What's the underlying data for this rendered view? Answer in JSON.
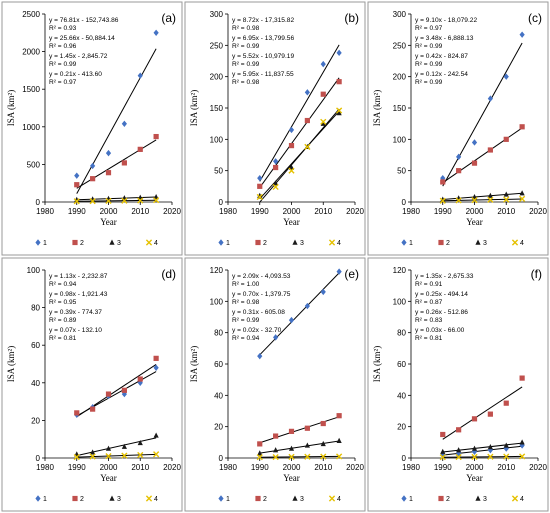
{
  "colors": {
    "series1": "#4472C4",
    "series2": "#C0504D",
    "series3": "#1a1a1a",
    "series4": "#E5C100"
  },
  "chart_data": [
    {
      "type": "scatter",
      "label": "(a)",
      "xlabel": "Year",
      "ylabel": "ISA (km²)",
      "xlim": [
        1980,
        2020
      ],
      "xticks": [
        1980,
        1990,
        2000,
        2010,
        2020
      ],
      "ylim": [
        0,
        2500
      ],
      "yticks": [
        0,
        500,
        1000,
        1500,
        2000,
        2500
      ],
      "x": [
        1990,
        1995,
        2000,
        2005,
        2010,
        2015
      ],
      "series": [
        {
          "name": "1",
          "marker": "diamond",
          "values": [
            350,
            480,
            650,
            1040,
            1680,
            2250
          ]
        },
        {
          "name": "2",
          "marker": "square",
          "values": [
            230,
            310,
            390,
            520,
            700,
            870
          ]
        },
        {
          "name": "3",
          "marker": "triangle",
          "values": [
            30,
            36,
            44,
            52,
            58,
            66
          ]
        },
        {
          "name": "4",
          "marker": "cross",
          "values": [
            10,
            12,
            14,
            17,
            20,
            24
          ]
        }
      ],
      "equations": [
        {
          "eq": "y = 76.81x - 152,743.86",
          "r2": "R² = 0.93"
        },
        {
          "eq": "y = 25.66x - 50,884.14",
          "r2": "R² = 0.96"
        },
        {
          "eq": "y = 1.45x - 2,845.72",
          "r2": "R² = 0.99"
        },
        {
          "eq": "y = 0.21x - 413.60",
          "r2": "R² = 0.97"
        }
      ]
    },
    {
      "type": "scatter",
      "label": "(b)",
      "xlabel": "Year",
      "ylabel": "ISA (km²)",
      "xlim": [
        1980,
        2020
      ],
      "xticks": [
        1980,
        1990,
        2000,
        2010,
        2020
      ],
      "ylim": [
        0,
        300
      ],
      "yticks": [
        0,
        50,
        100,
        150,
        200,
        250,
        300
      ],
      "x": [
        1990,
        1995,
        2000,
        2005,
        2010,
        2015
      ],
      "series": [
        {
          "name": "1",
          "marker": "diamond",
          "values": [
            38,
            65,
            115,
            175,
            220,
            238
          ]
        },
        {
          "name": "2",
          "marker": "square",
          "values": [
            25,
            55,
            90,
            130,
            172,
            192
          ]
        },
        {
          "name": "3",
          "marker": "triangle",
          "values": [
            10,
            30,
            55,
            88,
            125,
            142
          ]
        },
        {
          "name": "4",
          "marker": "cross",
          "values": [
            8,
            24,
            50,
            88,
            128,
            146
          ]
        }
      ],
      "equations": [
        {
          "eq": "y = 8.72x - 17,315.82",
          "r2": "R² = 0.98"
        },
        {
          "eq": "y = 6.95x - 13,799.56",
          "r2": "R² = 0.99"
        },
        {
          "eq": "y = 5.52x - 10,979.19",
          "r2": "R² = 0.99"
        },
        {
          "eq": "y = 5.95x - 11,837.55",
          "r2": "R² = 0.98"
        }
      ]
    },
    {
      "type": "scatter",
      "label": "(c)",
      "xlabel": "Year",
      "ylabel": "ISA (km²)",
      "xlim": [
        1980,
        2020
      ],
      "xticks": [
        1980,
        1990,
        2000,
        2010,
        2020
      ],
      "ylim": [
        0,
        300
      ],
      "yticks": [
        0,
        50,
        100,
        150,
        200,
        250,
        300
      ],
      "x": [
        1990,
        1995,
        2000,
        2005,
        2010,
        2015
      ],
      "series": [
        {
          "name": "1",
          "marker": "diamond",
          "values": [
            38,
            72,
            95,
            165,
            200,
            267
          ]
        },
        {
          "name": "2",
          "marker": "square",
          "values": [
            32,
            50,
            62,
            83,
            100,
            120
          ]
        },
        {
          "name": "3",
          "marker": "triangle",
          "values": [
            4,
            6,
            8,
            10,
            12,
            14
          ]
        },
        {
          "name": "4",
          "marker": "cross",
          "values": [
            2,
            2.5,
            3,
            3.5,
            4,
            5
          ]
        }
      ],
      "equations": [
        {
          "eq": "y = 9.10x - 18,079.22",
          "r2": "R² = 0.97"
        },
        {
          "eq": "y = 3.48x - 6,888.13",
          "r2": "R² = 0.99"
        },
        {
          "eq": "y = 0.42x - 824.87",
          "r2": "R² = 0.99"
        },
        {
          "eq": "y = 0.12x - 242.54",
          "r2": "R² = 0.99"
        }
      ]
    },
    {
      "type": "scatter",
      "label": "(d)",
      "xlabel": "Year",
      "ylabel": "ISA (km²)",
      "xlim": [
        1980,
        2020
      ],
      "xticks": [
        1980,
        1990,
        2000,
        2010,
        2020
      ],
      "ylim": [
        0,
        100
      ],
      "yticks": [
        0,
        20,
        40,
        60,
        80,
        100
      ],
      "x": [
        1990,
        1995,
        2000,
        2005,
        2010,
        2015
      ],
      "series": [
        {
          "name": "1",
          "marker": "diamond",
          "values": [
            23,
            27,
            33,
            34,
            40,
            48
          ]
        },
        {
          "name": "2",
          "marker": "square",
          "values": [
            24,
            26,
            34,
            36,
            42,
            53
          ]
        },
        {
          "name": "3",
          "marker": "triangle",
          "values": [
            2,
            3,
            5,
            6,
            8,
            12
          ]
        },
        {
          "name": "4",
          "marker": "cross",
          "values": [
            0.5,
            0.8,
            1,
            1.3,
            1.6,
            2
          ]
        }
      ],
      "equations": [
        {
          "eq": "y = 1.13x - 2,232.87",
          "r2": "R² = 0.94"
        },
        {
          "eq": "y = 0.98x - 1,921.43",
          "r2": "R² = 0.95"
        },
        {
          "eq": "y = 0.39x - 774.37",
          "r2": "R² = 0.89"
        },
        {
          "eq": "y = 0.07x - 132.10",
          "r2": "R² = 0.81"
        }
      ]
    },
    {
      "type": "scatter",
      "label": "(e)",
      "xlabel": "Year",
      "ylabel": "ISA (km²)",
      "xlim": [
        1980,
        2020
      ],
      "xticks": [
        1980,
        1990,
        2000,
        2010,
        2020
      ],
      "ylim": [
        0,
        120
      ],
      "yticks": [
        0,
        20,
        40,
        60,
        80,
        100,
        120
      ],
      "x": [
        1990,
        1995,
        2000,
        2005,
        2010,
        2015
      ],
      "series": [
        {
          "name": "1",
          "marker": "diamond",
          "values": [
            65,
            77,
            88,
            97,
            106,
            119
          ]
        },
        {
          "name": "2",
          "marker": "square",
          "values": [
            9,
            14,
            17,
            19,
            22,
            27
          ]
        },
        {
          "name": "3",
          "marker": "triangle",
          "values": [
            3,
            5,
            6,
            8,
            9,
            11
          ]
        },
        {
          "name": "4",
          "marker": "cross",
          "values": [
            0.5,
            0.6,
            0.7,
            0.8,
            0.9,
            1
          ]
        }
      ],
      "equations": [
        {
          "eq": "y = 2.09x - 4,093.53",
          "r2": "R² = 1.00"
        },
        {
          "eq": "y = 0.70x - 1,379.75",
          "r2": "R² = 0.98"
        },
        {
          "eq": "y = 0.31x - 605.08",
          "r2": "R² = 0.99"
        },
        {
          "eq": "y = 0.02x - 32.70",
          "r2": "R² = 0.94"
        }
      ]
    },
    {
      "type": "scatter",
      "label": "(f)",
      "xlabel": "Year",
      "ylabel": "ISA (km²)",
      "xlim": [
        1980,
        2020
      ],
      "xticks": [
        1980,
        1990,
        2000,
        2010,
        2020
      ],
      "ylim": [
        0,
        120
      ],
      "yticks": [
        0,
        20,
        40,
        60,
        80,
        100,
        120
      ],
      "x": [
        1990,
        1995,
        2000,
        2005,
        2010,
        2015
      ],
      "series": [
        {
          "name": "1",
          "marker": "diamond",
          "values": [
            2,
            3,
            4,
            5,
            6,
            8
          ]
        },
        {
          "name": "2",
          "marker": "square",
          "values": [
            15,
            18,
            25,
            28,
            35,
            51
          ]
        },
        {
          "name": "3",
          "marker": "triangle",
          "values": [
            4,
            5,
            6,
            7,
            8,
            10
          ]
        },
        {
          "name": "4",
          "marker": "cross",
          "values": [
            0.5,
            0.6,
            0.7,
            0.8,
            0.9,
            1
          ]
        }
      ],
      "equations": [
        {
          "eq": "y = 1.35x - 2,675.33",
          "r2": "R² = 0.91"
        },
        {
          "eq": "y = 0.25x - 494.14",
          "r2": "R² = 0.87"
        },
        {
          "eq": "y = 0.26x - 512.86",
          "r2": "R² = 0.83"
        },
        {
          "eq": "y = 0.03x - 66.00",
          "r2": "R² = 0.81"
        }
      ]
    }
  ]
}
